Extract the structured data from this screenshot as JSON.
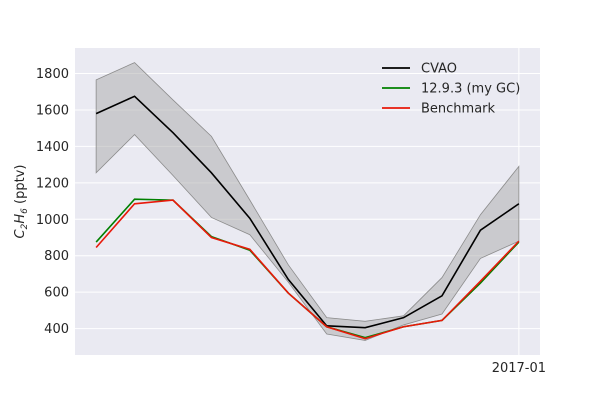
{
  "chart_data": {
    "type": "line",
    "title": "",
    "ylabel_main": "C",
    "ylabel_sub1": "2",
    "ylabel_mid": "H",
    "ylabel_sub2": "6",
    "ylabel_unit": " (pptv)",
    "ylim": [
      255,
      1940
    ],
    "yticks": [
      400,
      600,
      800,
      1000,
      1200,
      1400,
      1600,
      1800
    ],
    "xlim": [
      -0.55,
      11.55
    ],
    "x": [
      0,
      1,
      2,
      3,
      4,
      5,
      6,
      7,
      8,
      9,
      10,
      11
    ],
    "xtick_values": [
      11
    ],
    "xtick_labels": [
      "2017-01"
    ],
    "grid": true,
    "legend_position": "upper-right",
    "band": {
      "upper": [
        1765,
        1860,
        1655,
        1455,
        1105,
        750,
        460,
        440,
        470,
        680,
        1025,
        1290
      ],
      "lower": [
        1255,
        1465,
        1240,
        1010,
        915,
        655,
        370,
        335,
        420,
        480,
        785,
        880
      ],
      "color": "#a9a9a9"
    },
    "series": [
      {
        "name": "CVAO",
        "color": "#000000",
        "values": [
          1580,
          1675,
          1475,
          1255,
          1005,
          670,
          415,
          405,
          460,
          580,
          940,
          1085
        ]
      },
      {
        "name": "12.9.3 (my GC)",
        "color": "#008000",
        "values": [
          875,
          1110,
          1105,
          905,
          830,
          595,
          410,
          350,
          410,
          445,
          650,
          875
        ]
      },
      {
        "name": "Benchmark",
        "color": "#e8190a",
        "values": [
          845,
          1085,
          1105,
          900,
          835,
          595,
          410,
          345,
          410,
          445,
          660,
          880
        ]
      }
    ]
  }
}
